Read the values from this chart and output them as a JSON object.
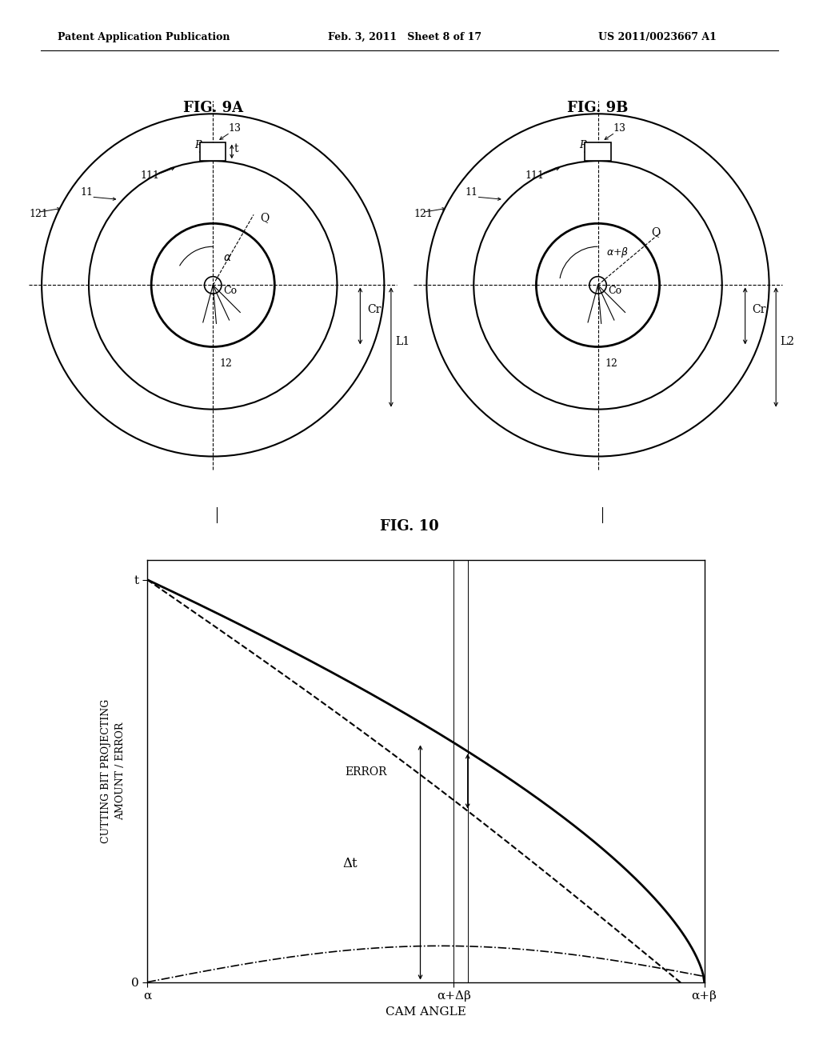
{
  "header_left": "Patent Application Publication",
  "header_mid": "Feb. 3, 2011   Sheet 8 of 17",
  "header_right": "US 2011/0023667 A1",
  "fig9a_title": "FIG. 9A",
  "fig9b_title": "FIG. 9B",
  "fig10_title": "FIG. 10",
  "fig10_ylabel": "CUTTING BIT PROJECTING\nAMOUNT / ERROR",
  "fig10_xlabel": "CAM ANGLE",
  "fig10_ytick_t": "t",
  "fig10_ytick_0": "0",
  "fig10_xtick_alpha": "α",
  "fig10_xtick_alpha_delta_beta": "α+Δβ",
  "fig10_xtick_alpha_beta": "α+β",
  "annotation_error": "ERROR",
  "annotation_delta_t": "Δt",
  "bg_color": "#ffffff",
  "line_color": "#000000"
}
